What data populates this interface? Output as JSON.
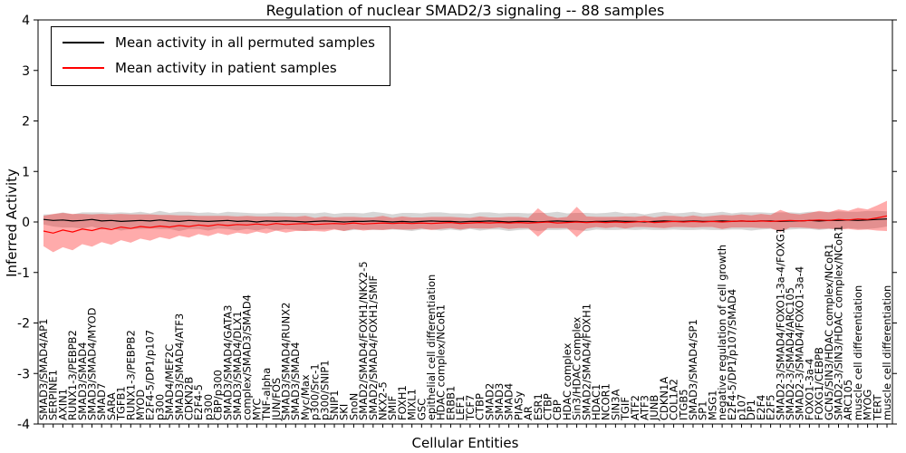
{
  "chart_data": {
    "type": "line",
    "title": "Regulation of nuclear SMAD2/3 signaling -- 88 samples",
    "xlabel": "Cellular Entities",
    "ylabel": "Inferred Activity",
    "ylim": [
      -4,
      4
    ],
    "yticks": [
      "-4",
      "-3",
      "-2",
      "-1",
      "0",
      "1",
      "2",
      "3",
      "4"
    ],
    "grid": false,
    "legend_position": "upper left",
    "legend": [
      {
        "label": "Mean activity in all permuted samples",
        "color": "#000000"
      },
      {
        "label": "Mean activity in patient samples",
        "color": "#ff0000"
      }
    ],
    "colors": {
      "permuted_line": "#000000",
      "patient_line": "#ff0000",
      "permuted_band": "rgba(0,0,0,0.16)",
      "patient_band": "rgba(255,0,0,0.33)"
    },
    "categories": [
      "SMAD3/SMAD4/AP1",
      "SERPINE1",
      "AXIN1",
      "RUNX1-3/PEBPB2",
      "SMAD3/SMAD4",
      "SMAD3/SMAD4/MYOD",
      "SMAD7",
      "SARA",
      "TGFB1",
      "RUNX1-3/PEBPB2",
      "MYOD",
      "E2F4-5/DP1/p107",
      "p300",
      "SMAD4/MEF2C",
      "SMAD3/SMAD4/ATF3",
      "CDKN2B",
      "E2F4-5",
      "p300",
      "CBP/p300",
      "SMAD3/SMAD4/GATA3",
      "SMAD3/SMAD4/DLX1",
      "complex/SMAD3/SMAD4",
      "MYC",
      "TNF-alpha",
      "JUN/FOS",
      "SMAD3/SMAD4/RUNX2",
      "SMAD3/SMAD4",
      "Myc/Max",
      "p300/Src-1",
      "p300/SNIP1",
      "SNIP1",
      "SKI",
      "SnoN",
      "SMAD2/SMAD4/FOXH1/NKX2-5",
      "SMAD2/SMAD4/FOXH1/SMIF",
      "NKX2-5",
      "SMIF",
      "FOXH1",
      "MIXL1",
      "GSC",
      "epithelial cell differentiation",
      "HDAC complex/NCoR1",
      "ERBB1",
      "LEF1",
      "TCF7",
      "CTBP",
      "SMAD2",
      "SMAD3",
      "SMAD4",
      "PIASy",
      "AR",
      "ESR1",
      "CTBP",
      "CBP",
      "HDAC complex",
      "Sin3/HDAC complex",
      "SMAD2/SMAD4/FOXH1",
      "HDAC1",
      "NCOR1",
      "SIN3A",
      "TGIF",
      "ATF2",
      "ATF3",
      "JUNB",
      "CDKN1A",
      "COL1A2",
      "ITGB5",
      "SMAD3/SMAD4/SP1",
      "SP1",
      "MSG1",
      "negative regulation of cell growth",
      "E2F4-5/DP1/p107/SMAD4",
      "p107",
      "DP1",
      "E2F4",
      "E2F5",
      "SMAD2-3/SMAD4/FOXO1-3a-4/FOXG1",
      "SMAD2-3/SMAD4/ARC105",
      "SMAD2-3/SMAD4/FOXO1-3a-4",
      "FOXO1-3a-4",
      "FOXG1/CEBPB",
      "GCN5/SIN3/HDAC complex/NCoR1",
      "SMAD2-3/SIN3/HDAC complex/NCoR1",
      "ARC105",
      "muscle cell differentiation",
      "MYOG",
      "TERT",
      "muscle cell differentiation"
    ],
    "series": [
      {
        "name": "Mean activity in all permuted samples",
        "values": [
          0.05,
          0.03,
          0.04,
          0.02,
          0.03,
          0.05,
          0.02,
          0.03,
          0.01,
          0.02,
          0.03,
          0.02,
          0.04,
          0.02,
          0.01,
          0.03,
          0.02,
          0.01,
          0.02,
          0.03,
          0.01,
          0.02,
          0.0,
          0.02,
          0.01,
          0.02,
          0.01,
          0.0,
          0.01,
          0.02,
          0.01,
          0.0,
          0.01,
          0.01,
          0.02,
          0.01,
          0.0,
          0.01,
          0.0,
          0.01,
          0.02,
          0.01,
          0.01,
          0.0,
          0.01,
          0.01,
          0.02,
          0.01,
          0.0,
          0.01,
          0.01,
          0.0,
          0.01,
          0.02,
          0.01,
          0.01,
          0.0,
          0.01,
          0.01,
          0.02,
          0.01,
          0.01,
          0.0,
          0.01,
          0.02,
          0.01,
          0.01,
          0.02,
          0.01,
          0.01,
          0.02,
          0.01,
          0.02,
          0.01,
          0.02,
          0.02,
          0.01,
          0.02,
          0.02,
          0.03,
          0.02,
          0.03,
          0.03,
          0.04,
          0.03,
          0.04,
          0.05,
          0.06
        ]
      },
      {
        "name": "Permuted band half-width",
        "values": [
          0.1,
          0.12,
          0.15,
          0.13,
          0.16,
          0.14,
          0.17,
          0.15,
          0.18,
          0.16,
          0.17,
          0.15,
          0.18,
          0.16,
          0.19,
          0.17,
          0.16,
          0.18,
          0.15,
          0.17,
          0.18,
          0.16,
          0.17,
          0.15,
          0.18,
          0.16,
          0.17,
          0.18,
          0.16,
          0.17,
          0.15,
          0.18,
          0.17,
          0.16,
          0.18,
          0.17,
          0.15,
          0.17,
          0.18,
          0.16,
          0.17,
          0.18,
          0.16,
          0.17,
          0.15,
          0.18,
          0.17,
          0.16,
          0.18,
          0.17,
          0.16,
          0.18,
          0.17,
          0.18,
          0.16,
          0.17,
          0.18,
          0.16,
          0.17,
          0.18,
          0.16,
          0.17,
          0.15,
          0.17,
          0.18,
          0.16,
          0.17,
          0.18,
          0.16,
          0.17,
          0.18,
          0.16,
          0.17,
          0.18,
          0.17,
          0.16,
          0.18,
          0.17,
          0.16,
          0.17,
          0.18,
          0.17,
          0.18,
          0.16,
          0.17,
          0.18,
          0.17,
          0.15
        ]
      },
      {
        "name": "Mean activity in patient samples",
        "values": [
          -0.18,
          -0.22,
          -0.16,
          -0.2,
          -0.14,
          -0.17,
          -0.12,
          -0.15,
          -0.1,
          -0.13,
          -0.09,
          -0.11,
          -0.08,
          -0.1,
          -0.07,
          -0.09,
          -0.06,
          -0.08,
          -0.05,
          -0.07,
          -0.05,
          -0.06,
          -0.04,
          -0.06,
          -0.03,
          -0.05,
          -0.04,
          -0.03,
          -0.05,
          -0.04,
          -0.03,
          -0.04,
          -0.02,
          -0.04,
          -0.03,
          -0.02,
          -0.03,
          -0.02,
          -0.03,
          -0.02,
          -0.03,
          -0.02,
          -0.01,
          -0.03,
          -0.02,
          -0.01,
          -0.02,
          -0.01,
          -0.02,
          -0.01,
          -0.02,
          -0.01,
          0.0,
          -0.02,
          -0.01,
          0.0,
          -0.01,
          0.0,
          -0.01,
          0.0,
          -0.01,
          0.0,
          0.01,
          -0.01,
          0.0,
          0.01,
          0.0,
          0.01,
          0.0,
          0.01,
          0.0,
          0.01,
          0.02,
          0.01,
          0.02,
          0.01,
          0.02,
          0.03,
          0.02,
          0.03,
          0.04,
          0.03,
          0.05,
          0.04,
          0.06,
          0.05,
          0.08,
          0.12
        ]
      },
      {
        "name": "Patient band half-width",
        "values": [
          0.3,
          0.38,
          0.34,
          0.36,
          0.3,
          0.32,
          0.28,
          0.3,
          0.26,
          0.28,
          0.24,
          0.26,
          0.22,
          0.24,
          0.2,
          0.22,
          0.18,
          0.2,
          0.17,
          0.19,
          0.16,
          0.18,
          0.15,
          0.17,
          0.14,
          0.16,
          0.14,
          0.15,
          0.13,
          0.15,
          0.12,
          0.14,
          0.12,
          0.13,
          0.12,
          0.14,
          0.11,
          0.13,
          0.12,
          0.11,
          0.13,
          0.12,
          0.11,
          0.12,
          0.1,
          0.12,
          0.11,
          0.1,
          0.12,
          0.11,
          0.1,
          0.28,
          0.12,
          0.1,
          0.11,
          0.3,
          0.12,
          0.1,
          0.11,
          0.1,
          0.12,
          0.1,
          0.11,
          0.1,
          0.12,
          0.11,
          0.1,
          0.12,
          0.1,
          0.11,
          0.14,
          0.12,
          0.13,
          0.12,
          0.14,
          0.13,
          0.22,
          0.14,
          0.13,
          0.15,
          0.18,
          0.16,
          0.2,
          0.18,
          0.22,
          0.2,
          0.25,
          0.3
        ]
      }
    ]
  }
}
